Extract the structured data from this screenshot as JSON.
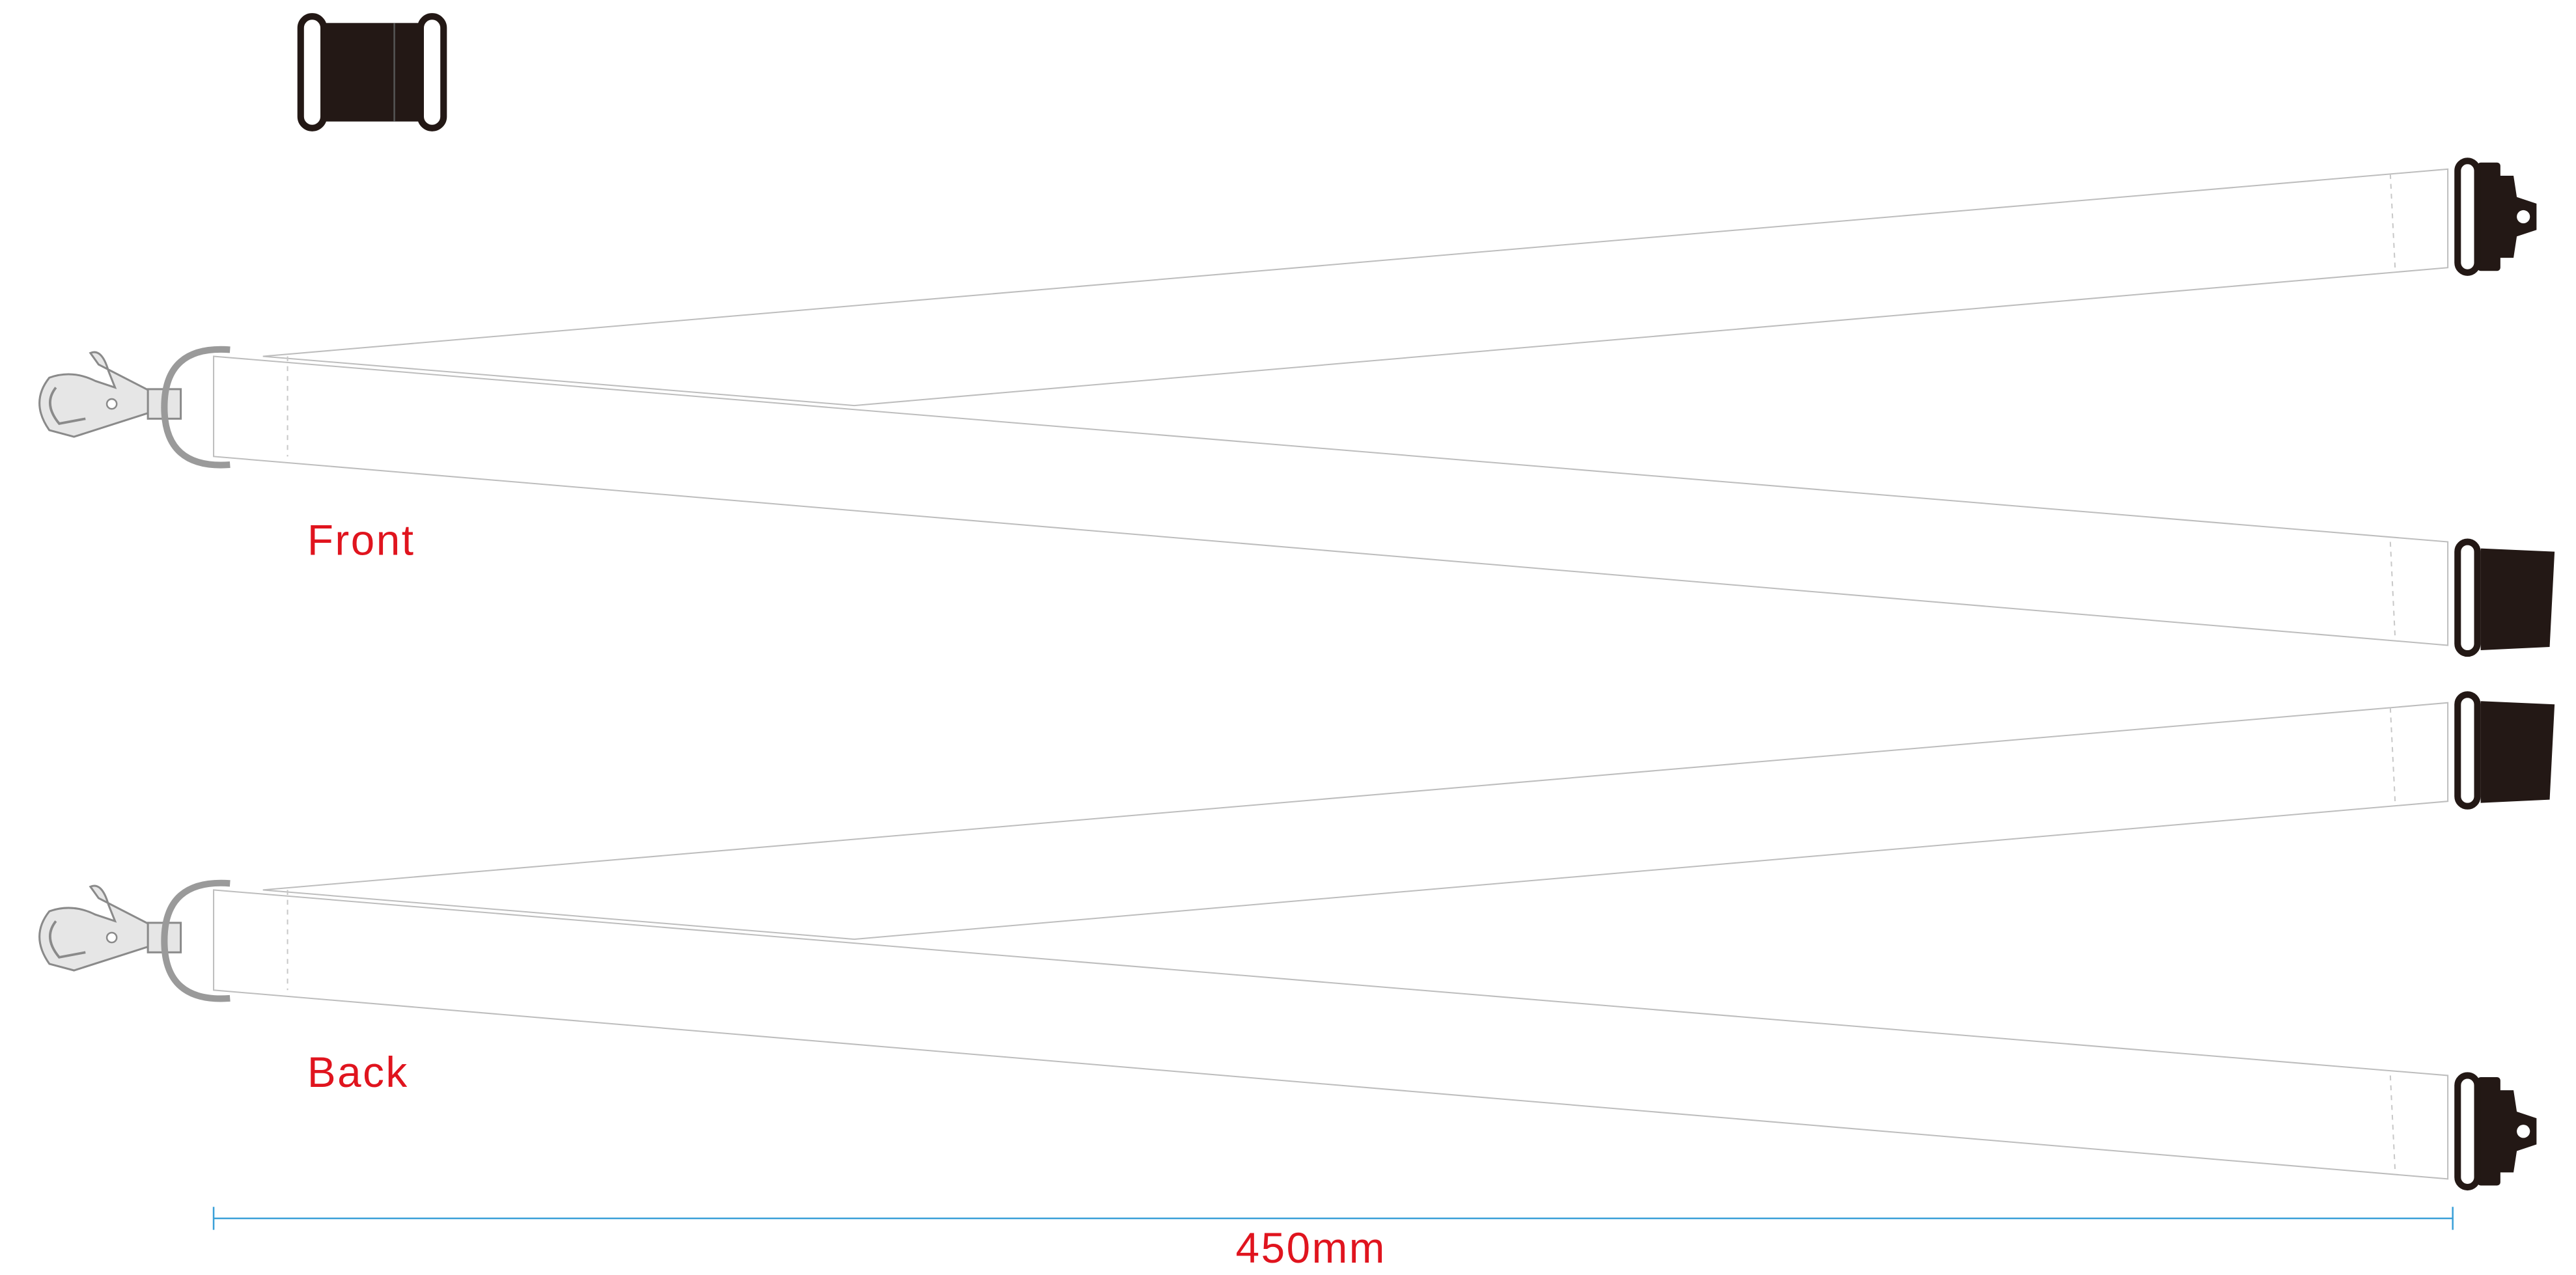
{
  "labels": {
    "front": "Front",
    "back": "Back"
  },
  "dimension": {
    "label": "450mm"
  }
}
